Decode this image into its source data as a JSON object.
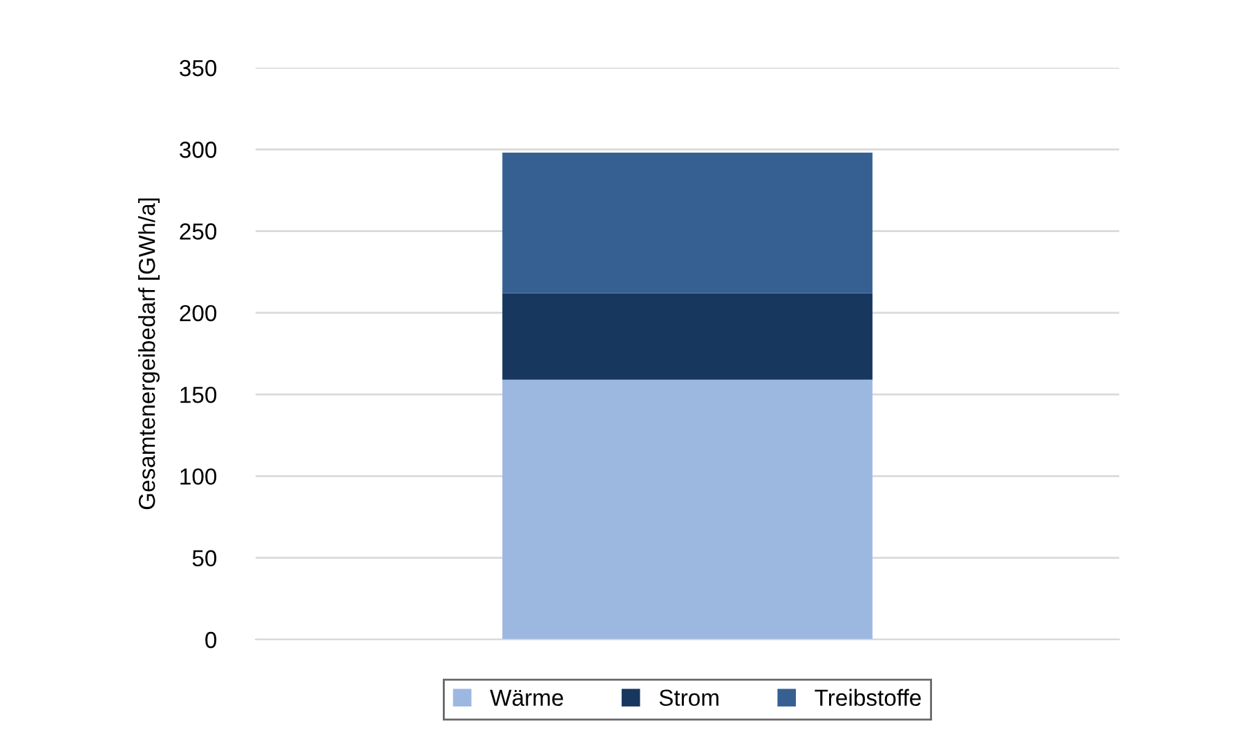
{
  "chart_data": {
    "type": "bar",
    "stacked": true,
    "ylabel": "Gesamtenergeibedarf [GWh/a]",
    "categories": [
      null
    ],
    "series": [
      {
        "name": "Wärme",
        "color": "#9db8e0",
        "values": [
          159
        ]
      },
      {
        "name": "Strom",
        "color": "#17375e",
        "values": [
          53
        ]
      },
      {
        "name": "Treibstoffe",
        "color": "#376092",
        "values": [
          86
        ]
      }
    ],
    "ylim": [
      0,
      350
    ],
    "yticks": [
      0,
      50,
      100,
      150,
      200,
      250,
      300,
      350
    ],
    "grid": "y",
    "legend": "bottom"
  }
}
